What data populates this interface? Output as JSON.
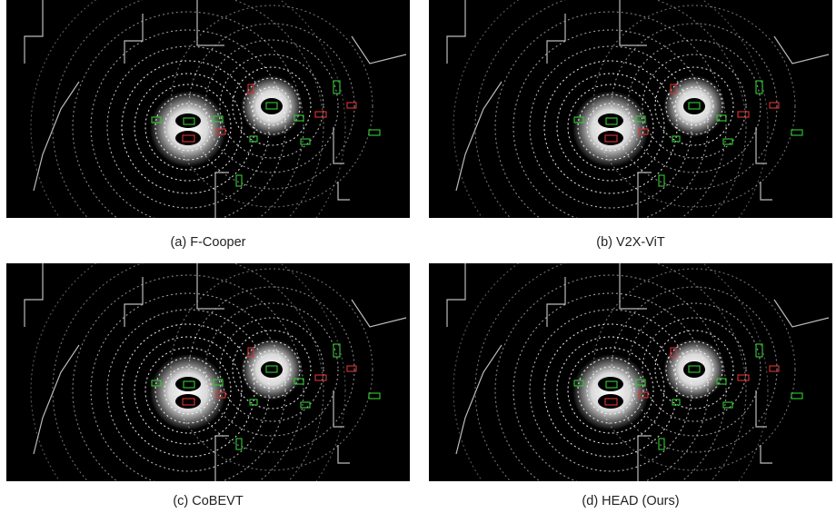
{
  "panels": [
    {
      "caption": "(a) F-Cooper"
    },
    {
      "caption": "(b) V2X-ViT"
    },
    {
      "caption": "(c) CoBEVT"
    },
    {
      "caption": "(d) HEAD (Ours)"
    }
  ]
}
